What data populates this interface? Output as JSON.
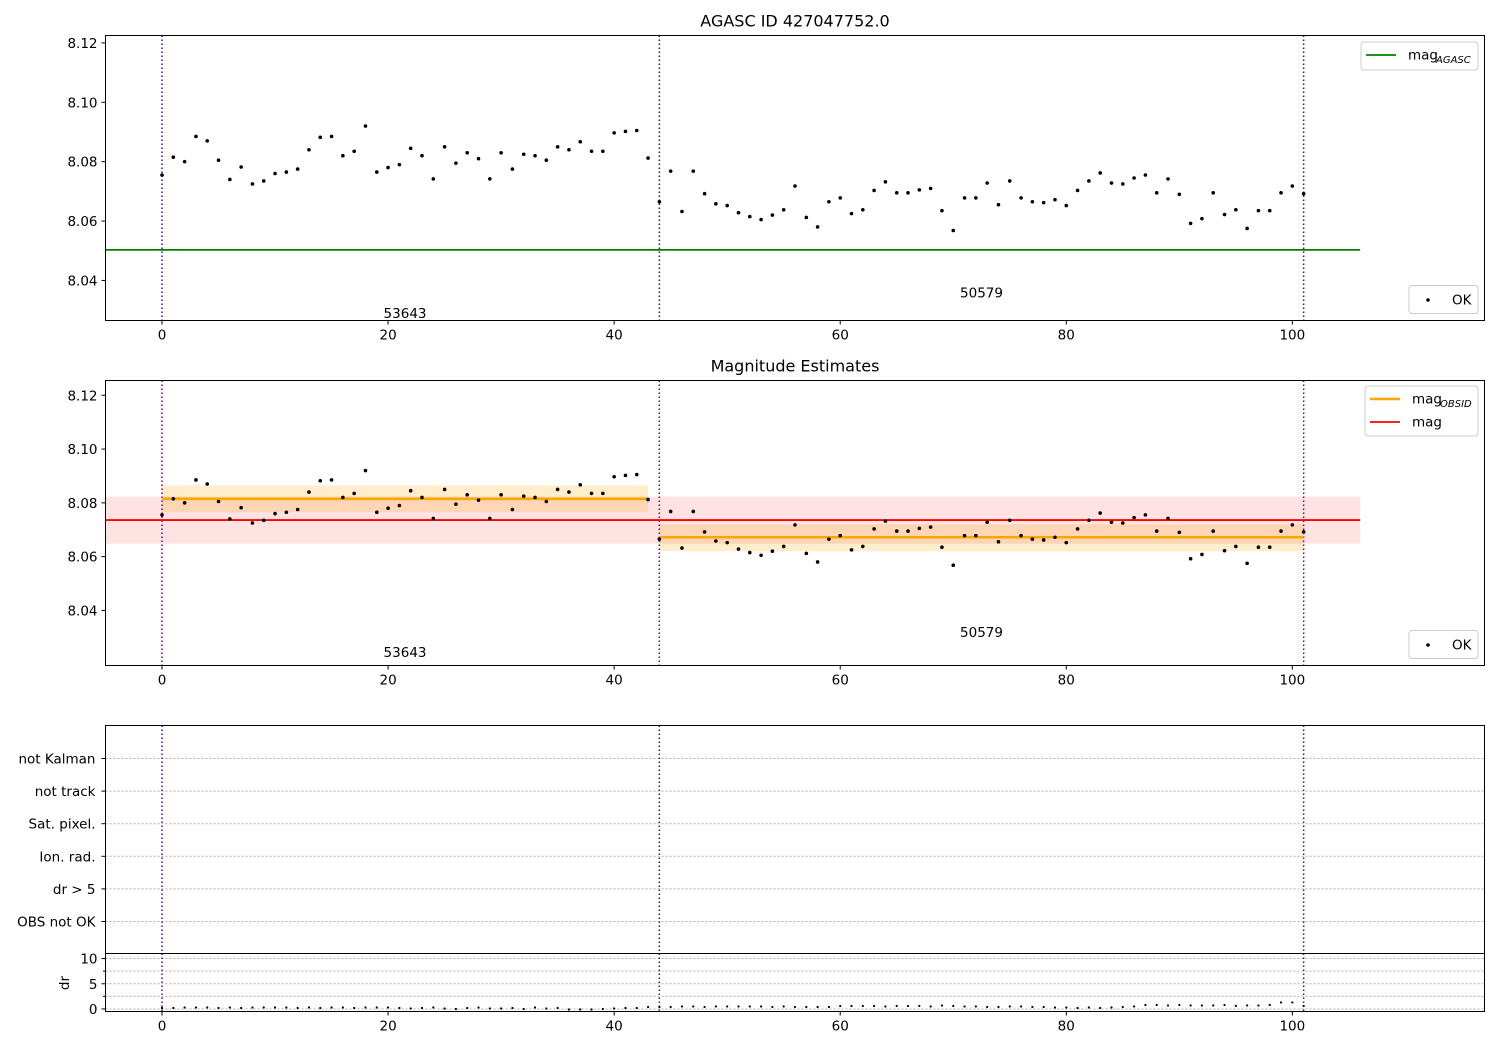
{
  "chart_data": [
    {
      "type": "scatter",
      "title": "AGASC ID 427047752.0",
      "xlim": [
        -5,
        117
      ],
      "ylim": [
        8.0265,
        8.1225
      ],
      "xticks": [
        "0",
        "20",
        "40",
        "60",
        "80",
        "100"
      ],
      "yticks": [
        "8.04",
        "8.06",
        "8.08",
        "8.10",
        "8.12"
      ],
      "vlines": [
        0,
        44,
        101
      ],
      "hlines": [
        {
          "name": "mag_AGASC",
          "y": 8.0503,
          "x0": -5,
          "x1": 106,
          "color": "#008000"
        }
      ],
      "annotations": [
        {
          "text": "53643",
          "x": 21.5,
          "y": 8.029
        },
        {
          "text": "50579",
          "x": 72.5,
          "y": 8.036
        }
      ],
      "legends": [
        {
          "label": "mag",
          "sub": "AGASC",
          "kind": "line",
          "color": "#008000",
          "loc": "top-right"
        },
        {
          "label": "OK",
          "kind": "point",
          "color": "#000000",
          "loc": "bottom-right"
        }
      ]
    },
    {
      "type": "scatter",
      "title": "Magnitude Estimates",
      "xlim": [
        -5,
        117
      ],
      "ylim": [
        8.0195,
        8.1255
      ],
      "xticks": [
        "0",
        "20",
        "40",
        "60",
        "80",
        "100"
      ],
      "yticks": [
        "8.04",
        "8.06",
        "8.08",
        "8.10",
        "8.12"
      ],
      "vlines": [
        0,
        44,
        101
      ],
      "bands": [
        {
          "x0": -5,
          "x1": 106,
          "y0": 8.0648,
          "y1": 8.0823,
          "color": "#ff0000",
          "opacity": 0.11
        },
        {
          "x0": 0,
          "x1": 43,
          "y0": 8.0765,
          "y1": 8.0865,
          "color": "#ffa500",
          "opacity": 0.2
        },
        {
          "x0": 44,
          "x1": 101,
          "y0": 8.062,
          "y1": 8.072,
          "color": "#ffa500",
          "opacity": 0.2
        }
      ],
      "hlines": [
        {
          "name": "mag",
          "y": 8.0736,
          "x0": -5,
          "x1": 106,
          "color": "#ff0000"
        },
        {
          "name": "mag_OBSID_1",
          "y": 8.0815,
          "x0": 0,
          "x1": 43,
          "color": "#ffa500"
        },
        {
          "name": "mag_OBSID_2",
          "y": 8.0672,
          "x0": 44,
          "x1": 101,
          "color": "#ffa500"
        }
      ],
      "annotations": [
        {
          "text": "53643",
          "x": 21.5,
          "y": 8.0245
        },
        {
          "text": "50579",
          "x": 72.5,
          "y": 8.032
        }
      ],
      "legends": [
        {
          "label": "mag",
          "sub": "OBSID",
          "kind": "line",
          "color": "#ffa500",
          "loc": "top-right"
        },
        {
          "label": "mag",
          "sub": "",
          "kind": "line",
          "color": "#ff0000",
          "loc": "top-right"
        },
        {
          "label": "OK",
          "kind": "point",
          "color": "#000000",
          "loc": "bottom-right"
        }
      ]
    },
    {
      "type": "scatter",
      "title": "",
      "xlim": [
        -5,
        117
      ],
      "vlines": [
        0,
        44,
        101
      ],
      "categories": [
        "not Kalman",
        "not track",
        "Sat. pixel.",
        "Ion. rad.",
        "dr > 5",
        "OBS not OK"
      ],
      "grid": true
    },
    {
      "type": "scatter",
      "title": "",
      "ylabel": "dr",
      "xlim": [
        -5,
        117
      ],
      "ylim": [
        -0.5,
        11
      ],
      "xticks": [
        "0",
        "20",
        "40",
        "60",
        "80",
        "100"
      ],
      "yticks": [
        "0",
        "5",
        "10"
      ],
      "vlines": [
        0,
        44,
        101
      ],
      "grid": true
    }
  ],
  "series": {
    "name": "OK",
    "x": [
      0,
      1,
      2,
      3,
      4,
      5,
      6,
      7,
      8,
      9,
      10,
      11,
      12,
      13,
      14,
      15,
      16,
      17,
      18,
      19,
      20,
      21,
      22,
      23,
      24,
      25,
      26,
      27,
      28,
      29,
      30,
      31,
      32,
      33,
      34,
      35,
      36,
      37,
      38,
      39,
      40,
      41,
      42,
      43,
      44,
      45,
      46,
      47,
      48,
      49,
      50,
      51,
      52,
      53,
      54,
      55,
      56,
      57,
      58,
      59,
      60,
      61,
      62,
      63,
      64,
      65,
      66,
      67,
      68,
      69,
      70,
      71,
      72,
      73,
      74,
      75,
      76,
      77,
      78,
      79,
      80,
      81,
      82,
      83,
      84,
      85,
      86,
      87,
      88,
      89,
      90,
      91,
      92,
      93,
      94,
      95,
      96,
      97,
      98,
      99,
      100,
      101
    ],
    "mag": [
      8.0755,
      8.0815,
      8.08,
      8.0885,
      8.087,
      8.0805,
      8.074,
      8.0782,
      8.0725,
      8.0735,
      8.076,
      8.0765,
      8.0775,
      8.084,
      8.0882,
      8.0885,
      8.082,
      8.0835,
      8.092,
      8.0765,
      8.078,
      8.079,
      8.0845,
      8.082,
      8.0742,
      8.085,
      8.0795,
      8.083,
      8.081,
      8.0742,
      8.083,
      8.0775,
      8.0825,
      8.082,
      8.0805,
      8.085,
      8.084,
      8.0867,
      8.0835,
      8.0835,
      8.0897,
      8.0902,
      8.0905,
      8.0812,
      8.0665,
      8.0768,
      8.0632,
      8.0768,
      8.0692,
      8.0658,
      8.0652,
      8.0628,
      8.0615,
      8.0605,
      8.062,
      8.0638,
      8.0718,
      8.0612,
      8.058,
      8.0665,
      8.0678,
      8.0625,
      8.0638,
      8.0703,
      8.0732,
      8.0695,
      8.0695,
      8.0705,
      8.071,
      8.0635,
      8.0568,
      8.0678,
      8.0678,
      8.0728,
      8.0655,
      8.0735,
      8.0678,
      8.0665,
      8.0662,
      8.0672,
      8.0652,
      8.0703,
      8.0735,
      8.0762,
      8.0728,
      8.0725,
      8.0745,
      8.0755,
      8.0695,
      8.0742,
      8.069,
      8.0592,
      8.0608,
      8.0695,
      8.0622,
      8.0638,
      8.0575,
      8.0635,
      8.0635,
      8.0695,
      8.0718,
      8.0692
    ],
    "dr": [
      0.2,
      0.2,
      0.3,
      0.3,
      0.3,
      0.2,
      0.3,
      0.2,
      0.3,
      0.3,
      0.3,
      0.3,
      0.2,
      0.3,
      0.2,
      0.3,
      0.3,
      0.2,
      0.3,
      0.3,
      0.3,
      0.2,
      0.1,
      0.2,
      0.3,
      0.1,
      0.0,
      0.2,
      0.3,
      0.1,
      0.1,
      0.2,
      0.0,
      0.3,
      0.1,
      0.2,
      -0.1,
      -0.1,
      -0.1,
      0.0,
      0.1,
      0.2,
      0.2,
      0.4,
      0.4,
      0.4,
      0.5,
      0.5,
      0.4,
      0.5,
      0.5,
      0.5,
      0.5,
      0.5,
      0.4,
      0.5,
      0.4,
      0.4,
      0.4,
      0.4,
      0.6,
      0.6,
      0.6,
      0.6,
      0.5,
      0.6,
      0.6,
      0.6,
      0.5,
      0.7,
      0.6,
      0.5,
      0.5,
      0.4,
      0.4,
      0.5,
      0.5,
      0.4,
      0.4,
      0.3,
      0.3,
      0.2,
      0.3,
      0.2,
      0.3,
      0.4,
      0.5,
      0.8,
      0.8,
      0.7,
      0.8,
      0.7,
      0.7,
      0.7,
      0.8,
      0.6,
      0.7,
      0.7,
      0.8,
      1.3,
      1.3,
      0.6
    ]
  }
}
